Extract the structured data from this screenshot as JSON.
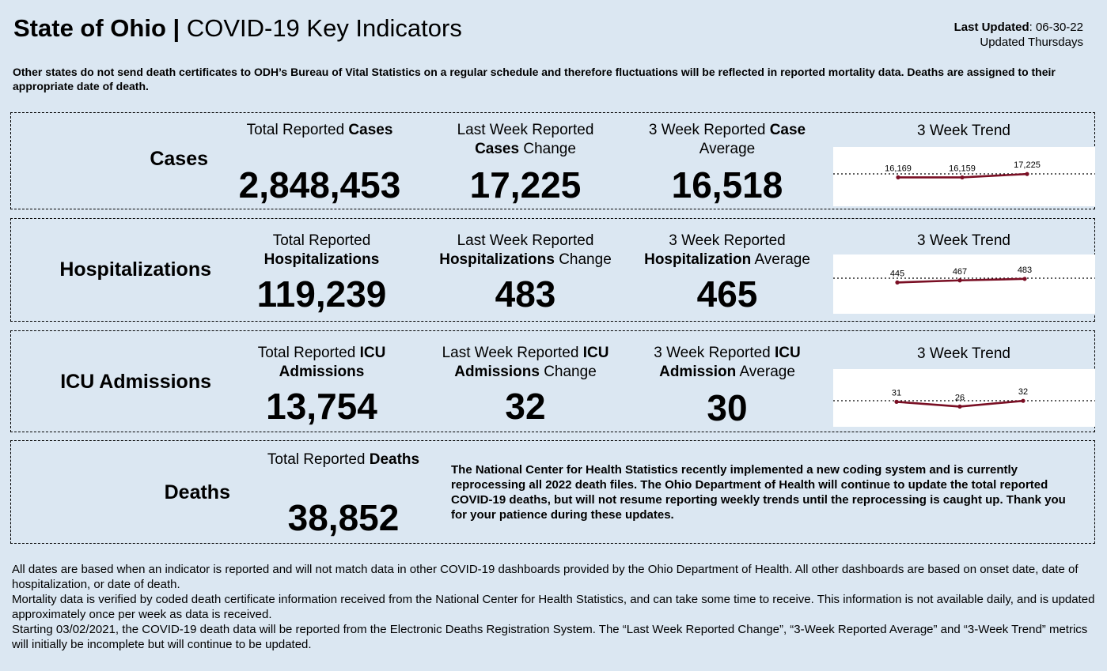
{
  "header": {
    "title_bold": "State of Ohio |",
    "title_rest": "COVID-19 Key Indicators",
    "last_updated_label": "Last Updated",
    "last_updated_value": ": 06-30-22",
    "update_schedule": "Updated Thursdays"
  },
  "notice": "Other states do not send death certificates to ODH’s Bureau of Vital Statistics on a regular schedule and therefore fluctuations will be reflected in reported mortality data. Deaths are assigned to their appropriate date of death.",
  "cases": {
    "label": "Cases",
    "total_pre": "Total Reported ",
    "total_bold": "Cases",
    "total_value": "2,848,453",
    "lastweek_line1": "Last Week Reported",
    "lastweek_bold": "Cases",
    "lastweek_post": " Change",
    "lastweek_value": "17,225",
    "avg_pre": "3 Week Reported ",
    "avg_bold": "Case",
    "avg_line2": "Average",
    "avg_value": "16,518",
    "trend_title": "3 Week Trend"
  },
  "hosp": {
    "label": "Hospitalizations",
    "total_line1": "Total Reported",
    "total_bold": "Hospitalizations",
    "total_value": "119,239",
    "lastweek_line1": "Last Week Reported",
    "lastweek_bold": "Hospitalizations",
    "lastweek_post": " Change",
    "lastweek_value": "483",
    "avg_line1": "3 Week Reported",
    "avg_bold": "Hospitalization",
    "avg_post": " Average",
    "avg_value": "465",
    "trend_title": "3 Week Trend"
  },
  "icu": {
    "label": "ICU Admissions",
    "total_pre": "Total Reported ",
    "total_bold1": "ICU",
    "total_bold2": "Admissions",
    "total_value": "13,754",
    "lastweek_pre": "Last Week Reported ",
    "lastweek_bold1": "ICU",
    "lastweek_bold2": "Admissions",
    "lastweek_post": " Change",
    "lastweek_value": "32",
    "avg_pre": "3 Week Reported ",
    "avg_bold1": "ICU",
    "avg_bold2": "Admission",
    "avg_post": " Average",
    "avg_value": "30",
    "trend_title": "3 Week Trend"
  },
  "deaths": {
    "label": "Deaths",
    "total_pre": "Total Reported ",
    "total_bold": "Deaths",
    "total_value": "38,852",
    "note": "The National Center for Health Statistics recently implemented a new coding system and is currently reprocessing all 2022 death files. The Ohio Department of Health will continue to update the total reported COVID-19 deaths, but will not resume reporting weekly trends until the reprocessing is caught up.  Thank you for your patience during these updates."
  },
  "footer": {
    "p1": "All dates are based when an indicator is reported and will not match data in other COVID-19 dashboards provided by the Ohio Department of Health. All other dashboards are based on onset date, date of hospitalization, or date of death.",
    "p2": "Mortality data is verified by coded death certificate information received from the National Center for Health Statistics, and can take some time to receive. This information is not available daily, and is updated approximately once per week as data is received.",
    "p3": "Starting 03/02/2021, the COVID-19 death data will be reported from the Electronic Deaths Registration System. The “Last Week Reported Change”, “3-Week Reported Average” and “3-Week Trend” metrics will initially be incomplete but will continue to be updated."
  },
  "colors": {
    "background": "#dbe7f2",
    "trend_line": "#7a0f24"
  },
  "chart_data": [
    {
      "type": "line",
      "name": "cases",
      "x": [
        1,
        2,
        3
      ],
      "labels": [
        "16,169",
        "16,159",
        "17,225"
      ],
      "values": [
        16169,
        16159,
        17225
      ]
    },
    {
      "type": "line",
      "name": "hospitalizations",
      "x": [
        1,
        2,
        3
      ],
      "labels": [
        "445",
        "467",
        "483"
      ],
      "values": [
        445,
        467,
        483
      ]
    },
    {
      "type": "line",
      "name": "icu",
      "x": [
        1,
        2,
        3
      ],
      "labels": [
        "31",
        "26",
        "32"
      ],
      "values": [
        31,
        26,
        32
      ]
    }
  ]
}
